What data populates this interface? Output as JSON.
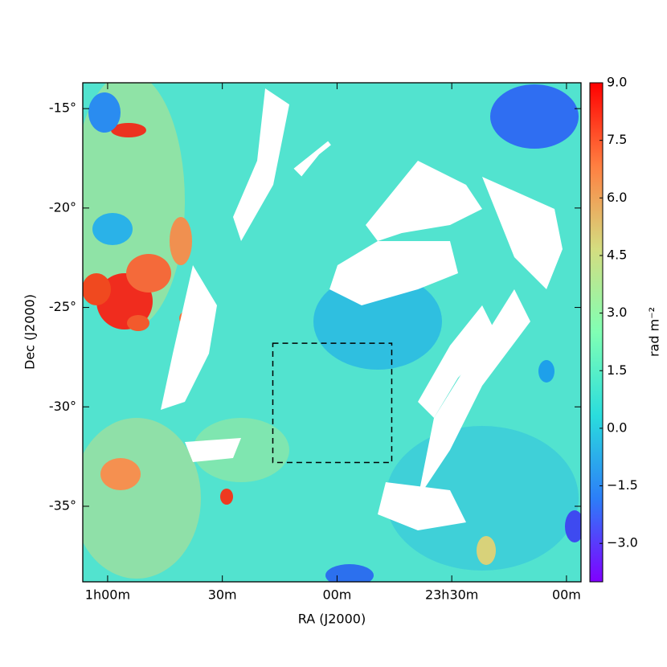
{
  "chart_data": {
    "type": "image",
    "xlabel": "RA (J2000)",
    "ylabel": "Dec (J2000)",
    "colorbar_label": "rad m⁻²",
    "xlim": [
      66.5,
      -63.8
    ],
    "ylim": [
      -38.8,
      -13.7
    ],
    "xticks": [
      {
        "value": 60,
        "label": "1h00m"
      },
      {
        "value": 30,
        "label": "30m"
      },
      {
        "value": 0,
        "label": "00m"
      },
      {
        "value": -30,
        "label": "23h30m"
      },
      {
        "value": -60,
        "label": "00m"
      }
    ],
    "yticks": [
      {
        "value": -15,
        "label": "-15°"
      },
      {
        "value": -20,
        "label": "-20°"
      },
      {
        "value": -25,
        "label": "-25°"
      },
      {
        "value": -30,
        "label": "-30°"
      },
      {
        "value": -35,
        "label": "-35°"
      }
    ],
    "clim": [
      -4.0,
      9.0
    ],
    "cticks": [
      {
        "value": 9,
        "label": "9.0"
      },
      {
        "value": 7.5,
        "label": "7.5"
      },
      {
        "value": 6,
        "label": "6.0"
      },
      {
        "value": 4.5,
        "label": "4.5"
      },
      {
        "value": 3,
        "label": "3.0"
      },
      {
        "value": 1.5,
        "label": "1.5"
      },
      {
        "value": 0,
        "label": "0.0"
      },
      {
        "value": -1.5,
        "label": "−1.5"
      },
      {
        "value": -3,
        "label": "−3.0"
      }
    ],
    "colormap": [
      "#8000ff",
      "#2c7ef8",
      "#2adddd",
      "#80ffb4",
      "#d4dd80",
      "#ff7f41",
      "#ff0000"
    ],
    "box": {
      "x": [
        16.8,
        -14.3
      ],
      "y": [
        -26.8,
        -32.8
      ]
    }
  }
}
